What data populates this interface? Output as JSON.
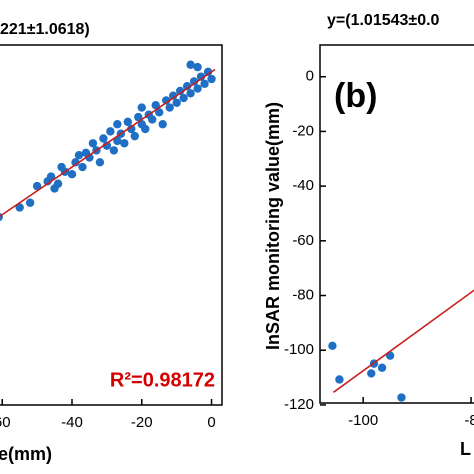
{
  "chart_data": [
    {
      "type": "scatter",
      "title": "221±1.0618)",
      "x_label": "e(mm)",
      "annotation": "R²=0.98172",
      "annotation_color": "#d40000",
      "xlim": [
        -61.5,
        3
      ],
      "ylim": [
        -140,
        11.3
      ],
      "xticks": [
        {
          "value": -60,
          "label": "60"
        },
        -40,
        -20,
        0
      ],
      "series": [
        {
          "color": "#1f6fc4",
          "x": [
            -52,
            -50,
            -47,
            -46,
            -44,
            -43,
            -42,
            -40,
            -39,
            -38,
            -37,
            -36,
            -35,
            -34,
            -33,
            -32,
            -31,
            -30,
            -29,
            -28,
            -27,
            -27,
            -26,
            -25,
            -24,
            -23,
            -22,
            -21,
            -20,
            -20,
            -19,
            -18,
            -17,
            -16,
            -15,
            -14,
            -13,
            -12,
            -11,
            -10,
            -9,
            -8,
            -7,
            -6,
            -5,
            -4,
            -3,
            -2,
            -1,
            0,
            -4,
            -6,
            -45,
            -55,
            -61
          ],
          "y": [
            -55,
            -48,
            -46,
            -44,
            -47,
            -40,
            -42,
            -43,
            -38,
            -35,
            -40,
            -34,
            -36,
            -30,
            -33,
            -38,
            -28,
            -31,
            -25,
            -33,
            -29,
            -22,
            -26,
            -30,
            -21,
            -24,
            -27,
            -19,
            -22,
            -15,
            -24,
            -18,
            -20,
            -14,
            -17,
            -22,
            -12,
            -15,
            -10,
            -13,
            -8,
            -11,
            -6,
            -9,
            -4,
            -7,
            -2,
            -5,
            0,
            -3,
            2,
            3,
            -49,
            -57,
            -61
          ]
        }
      ],
      "fit": {
        "color": "#c81e1e",
        "x": [
          -61.5,
          1
        ],
        "y": [
          -61.5,
          1
        ]
      }
    },
    {
      "type": "scatter",
      "title": "y=(1.01543±0.0",
      "y_label": "InSAR monitoring value(mm)",
      "x_label": "L",
      "annotation": "(b)",
      "xlim": [
        -108,
        -78.9
      ],
      "ylim": [
        -119.3,
        11.6
      ],
      "xticks": [
        -100,
        {
          "value": -80,
          "label": "-8"
        }
      ],
      "yticks": [
        0,
        -20,
        -40,
        -60,
        -80,
        -100,
        -120
      ],
      "series": [
        {
          "color": "#1f6fc4",
          "x": [
            -105.7,
            -104.4,
            -98,
            -98.5,
            -96.5,
            -95,
            -92.9
          ],
          "y": [
            -98.4,
            -110.7,
            -104.9,
            -108.5,
            -106.4,
            -102,
            -117.3
          ]
        }
      ],
      "fit": {
        "color": "#c81e1e",
        "x": [
          -105.5,
          -78.9
        ],
        "y": [
          -115.4,
          -77.3
        ]
      }
    }
  ]
}
